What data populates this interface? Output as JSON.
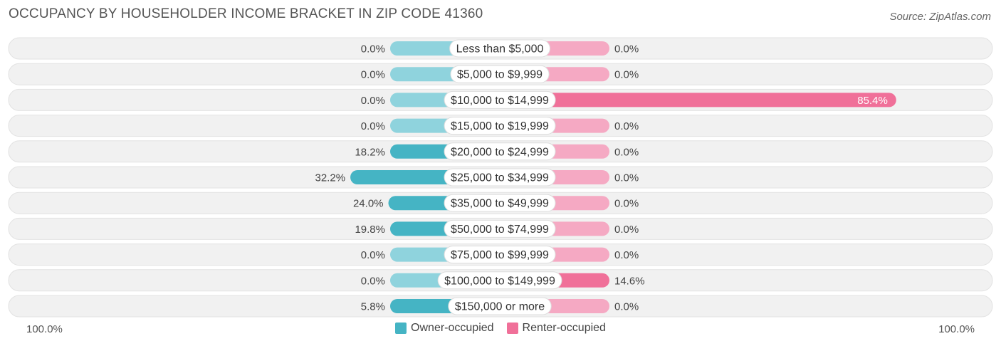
{
  "title": "OCCUPANCY BY HOUSEHOLDER INCOME BRACKET IN ZIP CODE 41360",
  "source": "Source: ZipAtlas.com",
  "colors": {
    "owner": "#45b4c4",
    "owner_zero": "#8fd3dd",
    "renter": "#f07099",
    "renter_zero": "#f5a9c3",
    "row_bg": "#f1f1f1"
  },
  "axis": {
    "left_label": "100.0%",
    "right_label": "100.0%"
  },
  "legend": {
    "owner": "Owner-occupied",
    "renter": "Renter-occupied"
  },
  "chart_data": {
    "type": "bar",
    "orientation": "diverging-horizontal",
    "categories": [
      "Less than $5,000",
      "$5,000 to $9,999",
      "$10,000 to $14,999",
      "$15,000 to $19,999",
      "$20,000 to $24,999",
      "$25,000 to $34,999",
      "$35,000 to $49,999",
      "$50,000 to $74,999",
      "$75,000 to $99,999",
      "$100,000 to $149,999",
      "$150,000 or more"
    ],
    "series": [
      {
        "name": "Owner-occupied",
        "values": [
          0.0,
          0.0,
          0.0,
          0.0,
          18.2,
          32.2,
          24.0,
          19.8,
          0.0,
          0.0,
          5.8
        ],
        "labels": [
          "0.0%",
          "0.0%",
          "0.0%",
          "0.0%",
          "18.2%",
          "32.2%",
          "24.0%",
          "19.8%",
          "0.0%",
          "0.0%",
          "5.8%"
        ]
      },
      {
        "name": "Renter-occupied",
        "values": [
          0.0,
          0.0,
          85.4,
          0.0,
          0.0,
          0.0,
          0.0,
          0.0,
          0.0,
          14.6,
          0.0
        ],
        "labels": [
          "0.0%",
          "0.0%",
          "85.4%",
          "0.0%",
          "0.0%",
          "0.0%",
          "0.0%",
          "0.0%",
          "0.0%",
          "14.6%",
          "0.0%"
        ]
      }
    ],
    "xlim": [
      -100,
      100
    ]
  }
}
